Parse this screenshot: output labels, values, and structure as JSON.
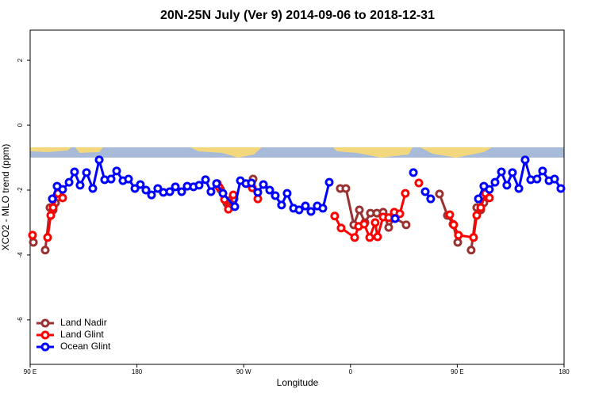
{
  "chart_data": {
    "type": "line",
    "title": "20N-25N July (Ver 9)   2014-09-06 to 2018-12-31",
    "x_label": "Longitude",
    "y_label": "XCO2 - MLO trend (ppm)",
    "xlim": [
      90,
      540
    ],
    "xticks": [
      {
        "value": 90,
        "label": "90 E"
      },
      {
        "value": 180,
        "label": "180"
      },
      {
        "value": 270,
        "label": "90 W"
      },
      {
        "value": 360,
        "label": "0"
      },
      {
        "value": 450,
        "label": "90 E"
      },
      {
        "value": 540,
        "label": "180"
      }
    ],
    "ylim": [
      -7.37,
      2.93
    ],
    "yticks": [
      -6,
      -4,
      -2,
      0,
      2
    ],
    "legend": "bottomleft",
    "series": [
      {
        "name": "Land Nadir",
        "color": "#993333",
        "x": [
          92.7,
          null,
          102.7,
          106.7,
          109.4,
          111.4,
          null,
          247.8,
          250.5,
          255.8,
          258.5,
          261.9,
          null,
          277.9,
          null,
          351.4,
          356.1,
          362.8,
          367.5,
          372.2,
          376.8,
          382.2,
          387.5,
          392.2,
          396.9,
          406.9,
          null,
          435.0,
          441.7,
          446.4,
          450.4,
          null,
          461.7,
          466.4,
          469.8,
          472.4
        ],
        "values": [
          -3.61,
          null,
          -3.85,
          -2.54,
          -2.61,
          -2.39,
          null,
          -1.8,
          -1.98,
          -2.41,
          -2.32,
          -2.27,
          null,
          -1.66,
          null,
          -1.95,
          -1.95,
          -3.07,
          -2.61,
          -3.0,
          -2.71,
          -2.71,
          -2.68,
          -3.15,
          -2.85,
          -3.07,
          null,
          -2.12,
          -2.78,
          -3.05,
          -3.61,
          null,
          -3.85,
          -2.54,
          -2.61,
          -2.39
        ]
      },
      {
        "name": "Land Glint",
        "color": "#ff0000",
        "x": [
          92.0,
          null,
          104.7,
          107.4,
          109.4,
          113.4,
          117.4,
          null,
          249.1,
          253.8,
          257.1,
          261.2,
          null,
          277.2,
          281.9,
          null,
          346.7,
          352.1,
          363.5,
          366.8,
          371.5,
          376.2,
          380.8,
          382.8,
          387.5,
          392.2,
          396.9,
          401.6,
          406.2,
          null,
          417.6,
          null,
          443.7,
          447.0,
          451.0,
          463.7,
          466.4,
          469.8,
          473.8,
          477.1
        ],
        "values": [
          -3.39,
          null,
          -3.46,
          -2.78,
          -2.54,
          -2.1,
          -2.24,
          null,
          -1.9,
          -2.29,
          -2.59,
          -2.15,
          null,
          -1.93,
          -2.27,
          null,
          -2.8,
          -3.17,
          -3.46,
          -3.12,
          -3.05,
          -3.46,
          -3.0,
          -3.44,
          -2.83,
          -2.85,
          -2.68,
          -2.73,
          -2.1,
          null,
          -1.78,
          null,
          -2.76,
          -3.07,
          -3.39,
          -3.46,
          -2.78,
          -2.54,
          -2.1,
          -2.24
        ]
      },
      {
        "name": "Ocean Glint",
        "color": "#0000ff",
        "x": [
          108.7,
          112.7,
          117.4,
          122.8,
          127.4,
          132.1,
          137.5,
          142.8,
          148.2,
          152.8,
          158.2,
          162.9,
          168.2,
          172.9,
          178.3,
          182.9,
          187.6,
          192.3,
          197.6,
          202.3,
          207.7,
          212.4,
          217.7,
          222.4,
          227.7,
          232.4,
          237.8,
          242.4,
          247.1,
          252.5,
          262.5,
          267.2,
          271.9,
          276.5,
          281.9,
          286.6,
          291.9,
          296.6,
          301.9,
          306.6,
          312.0,
          316.7,
          322.0,
          326.7,
          332.0,
          336.7,
          342.1,
          null,
          397.6,
          null,
          413.0,
          null,
          423.0,
          427.6,
          null,
          467.8,
          472.4,
          477.1,
          481.8,
          487.2,
          491.8,
          496.5,
          501.9,
          507.2,
          511.9,
          517.2,
          521.9,
          527.3,
          532.0,
          537.3
        ],
        "values": [
          -2.27,
          -1.88,
          -1.98,
          -1.76,
          -1.44,
          -1.85,
          -1.46,
          -1.95,
          -1.07,
          -1.68,
          -1.66,
          -1.41,
          -1.71,
          -1.66,
          -1.95,
          -1.83,
          -2.0,
          -2.15,
          -1.95,
          -2.07,
          -2.05,
          -1.9,
          -2.05,
          -1.88,
          -1.9,
          -1.85,
          -1.68,
          -2.05,
          -1.8,
          -2.1,
          -2.51,
          -1.71,
          -1.8,
          -1.78,
          -2.07,
          -1.83,
          -2.0,
          -2.17,
          -2.46,
          -2.1,
          -2.56,
          -2.61,
          -2.49,
          -2.66,
          -2.49,
          -2.56,
          -1.76,
          null,
          -2.88,
          null,
          -1.46,
          null,
          -2.05,
          -2.27,
          null,
          -2.27,
          -1.88,
          -1.98,
          -1.76,
          -1.44,
          -1.85,
          -1.46,
          -1.95,
          -1.07,
          -1.68,
          -1.66,
          -1.41,
          -1.71,
          -1.66,
          -1.95
        ]
      }
    ]
  }
}
